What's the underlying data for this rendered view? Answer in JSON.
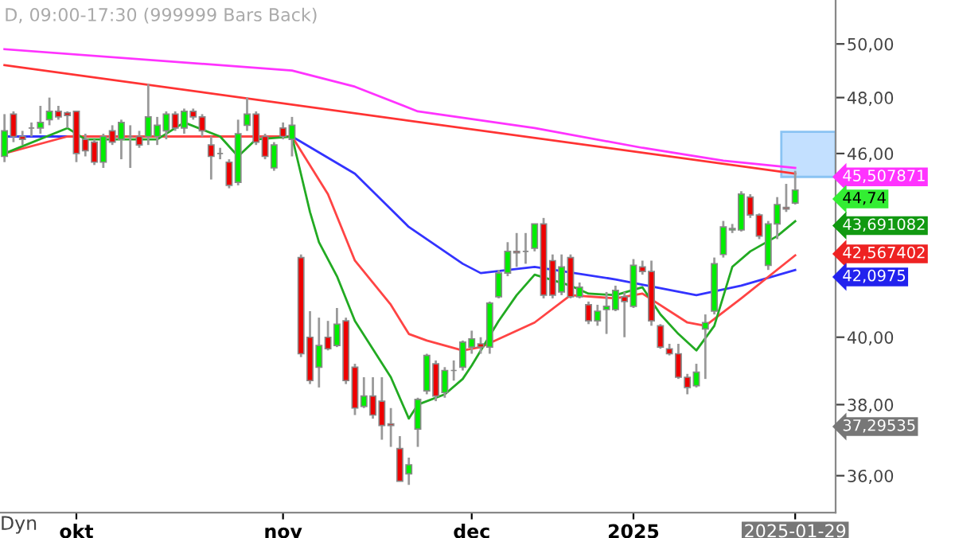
{
  "chart_data": {
    "type": "candlestick",
    "title": "D, 09:00-17:30 (999999 Bars Back)",
    "categories": [
      null,
      null,
      null,
      null,
      null,
      null,
      null,
      null,
      "okt",
      null,
      null,
      null,
      null,
      null,
      null,
      null,
      null,
      null,
      null,
      null,
      null,
      null,
      null,
      null,
      null,
      null,
      null,
      null,
      null,
      null,
      null,
      "nov",
      null,
      null,
      null,
      null,
      null,
      null,
      null,
      null,
      null,
      null,
      null,
      null,
      null,
      null,
      null,
      null,
      null,
      null,
      null,
      null,
      "dec",
      null,
      null,
      null,
      null,
      null,
      null,
      null,
      null,
      null,
      null,
      null,
      null,
      null,
      null,
      null,
      null,
      null,
      "2025",
      null,
      null,
      null,
      null,
      null,
      null,
      null,
      null,
      null,
      null,
      null,
      null,
      null,
      null,
      null,
      null,
      null,
      "2025-01-29"
    ],
    "ohlc": [
      [
        45.9,
        47.4,
        45.7,
        46.8
      ],
      [
        47.4,
        47.5,
        46.4,
        46.6
      ],
      [
        46.6,
        46.8,
        46.3,
        46.5
      ],
      [
        46.9,
        47.1,
        46.6,
        46.9
      ],
      [
        46.9,
        47.7,
        46.7,
        47.1
      ],
      [
        47.2,
        48.0,
        47.0,
        47.5
      ],
      [
        47.5,
        47.7,
        47.2,
        47.3
      ],
      [
        47.45,
        47.5,
        46.9,
        47.35
      ],
      [
        47.5,
        47.5,
        45.7,
        46.0
      ],
      [
        46.5,
        46.7,
        45.9,
        46.1
      ],
      [
        46.4,
        46.5,
        45.6,
        45.7
      ],
      [
        45.7,
        46.7,
        45.5,
        46.6
      ],
      [
        46.8,
        47.0,
        46.3,
        46.4
      ],
      [
        46.5,
        47.2,
        45.8,
        47.1
      ],
      [
        46.6,
        47.0,
        45.5,
        46.6
      ],
      [
        46.6,
        46.8,
        46.2,
        46.3
      ],
      [
        46.6,
        48.5,
        46.3,
        47.3
      ],
      [
        46.6,
        47.3,
        46.3,
        47.0
      ],
      [
        46.8,
        47.5,
        46.5,
        47.4
      ],
      [
        47.4,
        47.5,
        46.8,
        46.9
      ],
      [
        46.9,
        47.6,
        46.7,
        47.5
      ],
      [
        47.5,
        47.6,
        47.2,
        47.3
      ],
      [
        47.3,
        47.4,
        46.6,
        46.8
      ],
      [
        46.3,
        46.6,
        45.1,
        45.9
      ],
      [
        46.0,
        46.2,
        45.8,
        46.0
      ],
      [
        45.7,
        45.8,
        44.8,
        44.9
      ],
      [
        45.0,
        47.2,
        44.9,
        46.7
      ],
      [
        47.0,
        48.0,
        46.8,
        47.4
      ],
      [
        47.4,
        47.5,
        46.3,
        46.4
      ],
      [
        46.6,
        46.7,
        45.8,
        45.9
      ],
      [
        45.5,
        46.4,
        45.4,
        46.3
      ],
      [
        46.9,
        47.1,
        46.5,
        46.6
      ],
      [
        46.5,
        47.3,
        45.9,
        47.0
      ],
      [
        42.5,
        42.6,
        39.4,
        39.5
      ],
      [
        40.0,
        40.8,
        38.6,
        38.7
      ],
      [
        39.1,
        40.6,
        38.5,
        39.75
      ],
      [
        40.0,
        40.5,
        39.6,
        39.65
      ],
      [
        39.75,
        40.9,
        39.7,
        40.4
      ],
      [
        40.5,
        40.6,
        38.6,
        38.7
      ],
      [
        39.1,
        39.2,
        37.7,
        37.9
      ],
      [
        37.95,
        38.8,
        37.9,
        38.25
      ],
      [
        38.25,
        38.8,
        37.6,
        37.7
      ],
      [
        38.1,
        38.8,
        37.0,
        37.4
      ],
      [
        37.45,
        37.9,
        36.8,
        37.4
      ],
      [
        36.75,
        37.1,
        35.85,
        35.85
      ],
      [
        36.05,
        36.5,
        35.75,
        36.3
      ],
      [
        37.3,
        38.2,
        36.8,
        38.15
      ],
      [
        38.4,
        39.5,
        38.3,
        39.45
      ],
      [
        39.2,
        39.3,
        38.1,
        38.25
      ],
      [
        38.35,
        39.1,
        38.2,
        39.0
      ],
      [
        39.0,
        39.3,
        38.7,
        39.0
      ],
      [
        39.1,
        39.9,
        39.0,
        39.85
      ],
      [
        39.7,
        40.2,
        39.5,
        39.95
      ],
      [
        39.8,
        40.0,
        39.5,
        39.7
      ],
      [
        39.7,
        41.1,
        39.5,
        41.05
      ],
      [
        41.25,
        42.1,
        41.2,
        42.0
      ],
      [
        42.0,
        43.0,
        41.9,
        42.7
      ],
      [
        42.7,
        43.3,
        42.2,
        42.65
      ],
      [
        42.7,
        43.3,
        42.3,
        42.7
      ],
      [
        42.8,
        43.6,
        42.7,
        43.6
      ],
      [
        43.6,
        43.8,
        41.2,
        41.3
      ],
      [
        42.4,
        42.6,
        41.2,
        41.3
      ],
      [
        41.4,
        42.6,
        41.3,
        42.2
      ],
      [
        42.5,
        42.6,
        41.2,
        41.25
      ],
      [
        41.25,
        41.7,
        41.2,
        41.55
      ],
      [
        41.0,
        41.1,
        40.4,
        40.5
      ],
      [
        40.5,
        41.0,
        40.35,
        40.8
      ],
      [
        40.85,
        41.4,
        40.1,
        40.95
      ],
      [
        40.85,
        41.6,
        40.8,
        41.45
      ],
      [
        41.25,
        41.4,
        40.0,
        41.1
      ],
      [
        40.95,
        42.45,
        40.9,
        42.25
      ],
      [
        42.2,
        42.4,
        41.95,
        42.05
      ],
      [
        42.05,
        42.4,
        40.35,
        40.5
      ],
      [
        40.35,
        40.4,
        39.65,
        39.7
      ],
      [
        39.65,
        39.8,
        39.45,
        39.5
      ],
      [
        39.5,
        39.8,
        38.75,
        38.8
      ],
      [
        38.8,
        38.9,
        38.3,
        38.5
      ],
      [
        38.55,
        39.2,
        38.5,
        38.95
      ],
      [
        40.25,
        40.7,
        38.75,
        40.45
      ],
      [
        40.8,
        42.5,
        40.7,
        42.3
      ],
      [
        42.6,
        43.7,
        42.5,
        43.5
      ],
      [
        43.4,
        43.6,
        43.3,
        43.45
      ],
      [
        43.4,
        44.7,
        43.35,
        44.6
      ],
      [
        44.5,
        44.6,
        43.8,
        43.9
      ],
      [
        43.9,
        43.95,
        43.1,
        43.2
      ],
      [
        42.25,
        43.7,
        42.1,
        43.6
      ],
      [
        43.6,
        44.5,
        43.1,
        44.25
      ],
      [
        44.15,
        44.95,
        44.0,
        44.1
      ],
      [
        44.3,
        45.4,
        44.25,
        44.74
      ]
    ],
    "series": [
      {
        "type": "line",
        "color": "#ff33ff",
        "values": [
          49.8,
          null,
          null,
          null,
          null,
          null,
          null,
          null,
          null,
          null,
          null,
          null,
          null,
          null,
          null,
          null,
          null,
          null,
          null,
          null,
          null,
          null,
          null,
          null,
          null,
          null,
          null,
          null,
          null,
          null,
          null,
          null,
          49.0,
          null,
          null,
          null,
          null,
          null,
          null,
          48.4,
          null,
          null,
          null,
          null,
          null,
          null,
          47.5,
          null,
          null,
          null,
          null,
          null,
          null,
          null,
          null,
          null,
          null,
          null,
          null,
          46.9,
          null,
          null,
          null,
          null,
          null,
          null,
          null,
          null,
          null,
          null,
          null,
          46.2,
          null,
          null,
          null,
          null,
          null,
          null,
          null,
          null,
          45.75,
          null,
          null,
          null,
          null,
          null,
          null,
          null,
          45.5
        ]
      },
      {
        "type": "line",
        "color": "#ff3333",
        "values": [
          49.2,
          null,
          null,
          null,
          null,
          null,
          null,
          null,
          null,
          null,
          null,
          null,
          null,
          null,
          null,
          null,
          null,
          null,
          null,
          null,
          null,
          null,
          null,
          null,
          null,
          null,
          null,
          null,
          null,
          null,
          null,
          null,
          null,
          null,
          null,
          null,
          null,
          null,
          null,
          null,
          null,
          null,
          null,
          null,
          null,
          null,
          null,
          null,
          null,
          null,
          null,
          null,
          null,
          null,
          null,
          null,
          null,
          null,
          null,
          null,
          null,
          null,
          null,
          null,
          null,
          null,
          null,
          null,
          null,
          null,
          null,
          null,
          null,
          null,
          null,
          null,
          null,
          null,
          null,
          null,
          null,
          null,
          null,
          null,
          null,
          null,
          null,
          null,
          45.3
        ]
      },
      {
        "type": "line",
        "color": "#3333ff",
        "values": [
          46.6,
          null,
          null,
          null,
          null,
          null,
          null,
          null,
          null,
          null,
          null,
          null,
          null,
          null,
          null,
          46.6,
          null,
          null,
          null,
          null,
          null,
          null,
          null,
          null,
          null,
          null,
          null,
          null,
          null,
          null,
          null,
          null,
          46.6,
          null,
          null,
          null,
          null,
          null,
          null,
          45.3,
          null,
          null,
          null,
          null,
          null,
          43.5,
          null,
          null,
          null,
          null,
          null,
          42.3,
          null,
          42.0,
          null,
          null,
          null,
          null,
          null,
          42.2,
          null,
          null,
          null,
          null,
          null,
          null,
          null,
          null,
          41.8,
          null,
          null,
          null,
          null,
          null,
          null,
          null,
          null,
          41.3,
          null,
          null,
          null,
          null,
          41.6,
          null,
          null,
          null,
          null,
          null,
          42.1
        ]
      },
      {
        "type": "line",
        "color": "#ff4444",
        "values": [
          46.0,
          null,
          null,
          null,
          null,
          null,
          null,
          46.6,
          null,
          null,
          null,
          null,
          null,
          null,
          null,
          null,
          null,
          null,
          null,
          null,
          null,
          null,
          null,
          null,
          null,
          null,
          null,
          null,
          null,
          null,
          null,
          null,
          46.6,
          null,
          null,
          null,
          44.6,
          null,
          null,
          42.4,
          null,
          null,
          null,
          41.0,
          null,
          40.1,
          null,
          39.9,
          null,
          null,
          null,
          39.6,
          null,
          39.7,
          null,
          null,
          null,
          null,
          null,
          40.45,
          null,
          null,
          null,
          41.3,
          null,
          null,
          null,
          null,
          41.2,
          null,
          null,
          41.35,
          null,
          null,
          null,
          null,
          40.45,
          null,
          40.35,
          null,
          null,
          null,
          41.2,
          null,
          null,
          null,
          null,
          null,
          42.57
        ]
      },
      {
        "type": "line",
        "color": "#22aa22",
        "values": [
          46.0,
          null,
          null,
          null,
          null,
          null,
          null,
          46.9,
          null,
          46.5,
          null,
          null,
          null,
          null,
          null,
          null,
          null,
          46.5,
          null,
          null,
          47.1,
          null,
          null,
          null,
          46.6,
          null,
          45.9,
          null,
          46.5,
          null,
          null,
          null,
          46.6,
          null,
          44.0,
          43.0,
          null,
          41.9,
          null,
          40.5,
          null,
          null,
          null,
          38.8,
          null,
          37.6,
          38.0,
          null,
          null,
          38.3,
          null,
          38.75,
          39.15,
          null,
          null,
          40.5,
          null,
          41.3,
          null,
          41.95,
          null,
          null,
          null,
          41.6,
          null,
          41.35,
          null,
          null,
          41.3,
          null,
          null,
          41.55,
          null,
          40.7,
          null,
          40.1,
          null,
          39.6,
          null,
          40.35,
          null,
          42.2,
          null,
          42.7,
          null,
          null,
          43.2,
          null,
          43.69
        ]
      }
    ],
    "log": "y",
    "ylim": [
      35,
      51.7
    ],
    "yticks": [
      {
        "value": 36,
        "label": "36,00"
      },
      {
        "value": 38,
        "label": "38,00"
      },
      {
        "value": 40,
        "label": "40,00"
      },
      {
        "value": 46,
        "label": "46,00"
      },
      {
        "value": 48,
        "label": "48,00"
      },
      {
        "value": 50,
        "label": "50,00"
      }
    ],
    "grid": false,
    "legend": false,
    "annotations": [
      "45,507871",
      "44,74",
      "43,691082",
      "42,567402",
      "42,0975",
      "37,29535",
      "Dyn"
    ]
  }
}
